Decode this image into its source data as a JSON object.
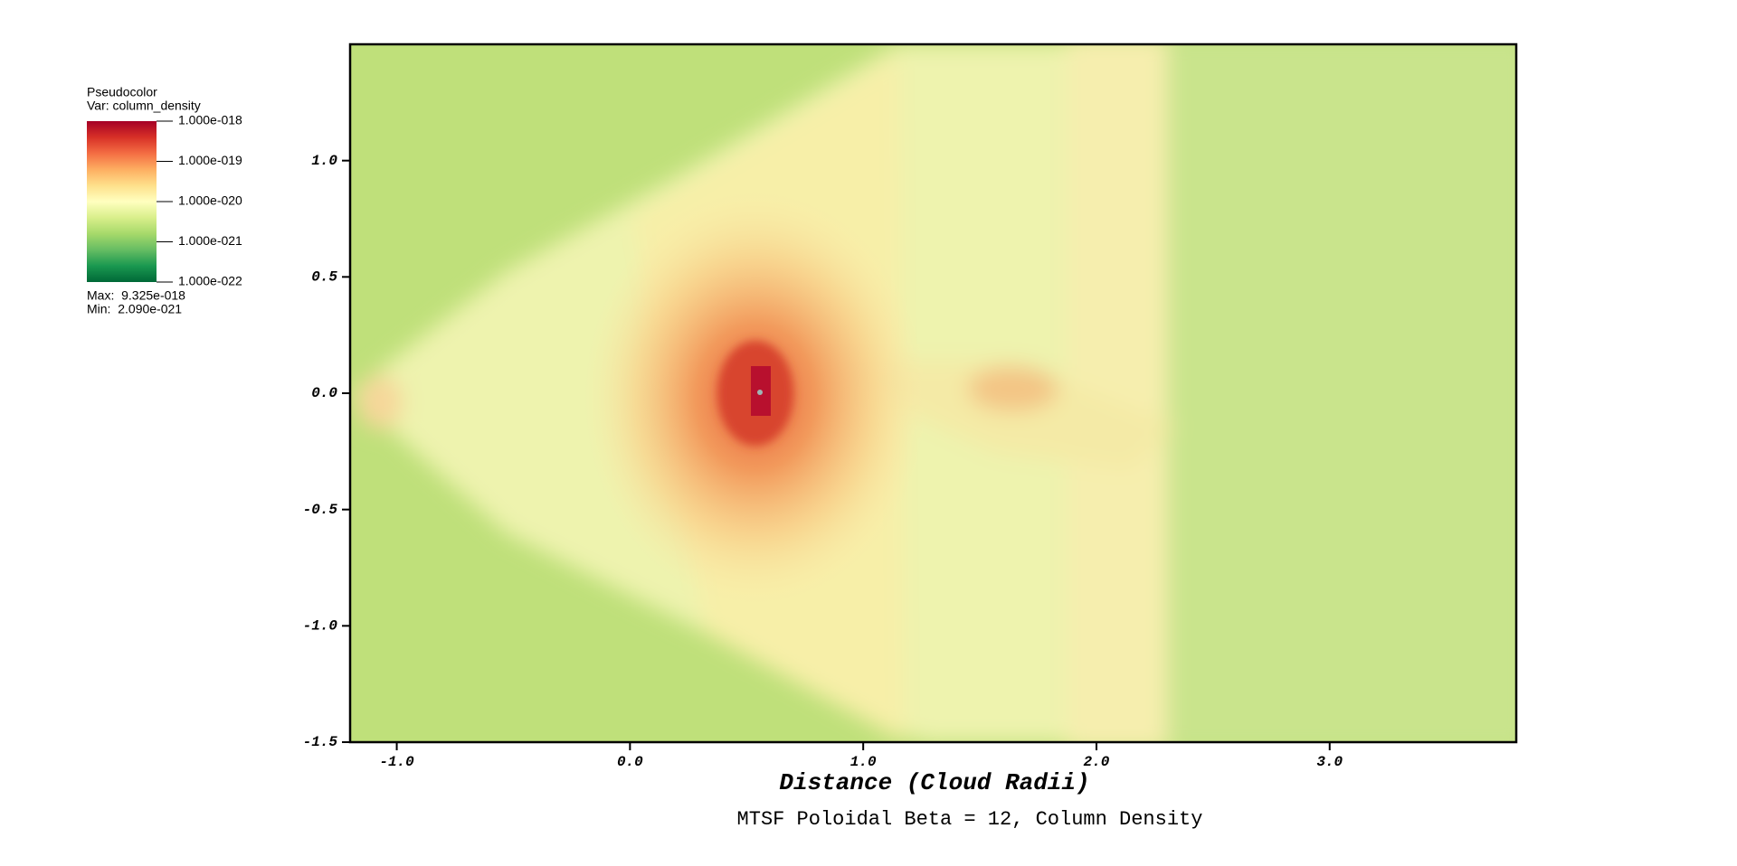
{
  "chart_data": {
    "type": "pseudocolor",
    "title": "MTSF Poloidal Beta = 12, Column Density",
    "xlabel": "Distance (Cloud Radii)",
    "xlim": [
      -1.2,
      3.8
    ],
    "ylim": [
      -1.5,
      1.5
    ],
    "xticks": [
      {
        "value": -1,
        "label": "-1.0"
      },
      {
        "value": 0,
        "label": "0.0"
      },
      {
        "value": 1,
        "label": "1.0"
      },
      {
        "value": 2,
        "label": "2.0"
      },
      {
        "value": 3,
        "label": "3.0"
      }
    ],
    "yticks": [
      -1.5,
      {
        "value": -1,
        "label": "-1.0"
      },
      -0.5,
      {
        "value": 0,
        "label": "0.0"
      },
      0.5,
      {
        "value": 1,
        "label": "1.0"
      }
    ],
    "legend": {
      "plot": "Pseudocolor",
      "var": "Var: column_density",
      "scale": "log",
      "colors": [
        "#a50026",
        "#d73027",
        "#f46d43",
        "#fdae61",
        "#fee08b",
        "#ffffbf",
        "#d9ef8b",
        "#a6d96a",
        "#66bd63",
        "#1a9850",
        "#006837"
      ],
      "ticks": [
        {
          "value": 1e-18,
          "label": "1.000e-018"
        },
        {
          "value": 1e-19,
          "label": "1.000e-019"
        },
        {
          "value": 1e-20,
          "label": "1.000e-020"
        },
        {
          "value": 1e-21,
          "label": "1.000e-021"
        },
        {
          "value": 1e-22,
          "label": "1.000e-022"
        }
      ],
      "max": "Max:  9.325e-018",
      "min": "Min:  2.090e-021"
    }
  }
}
